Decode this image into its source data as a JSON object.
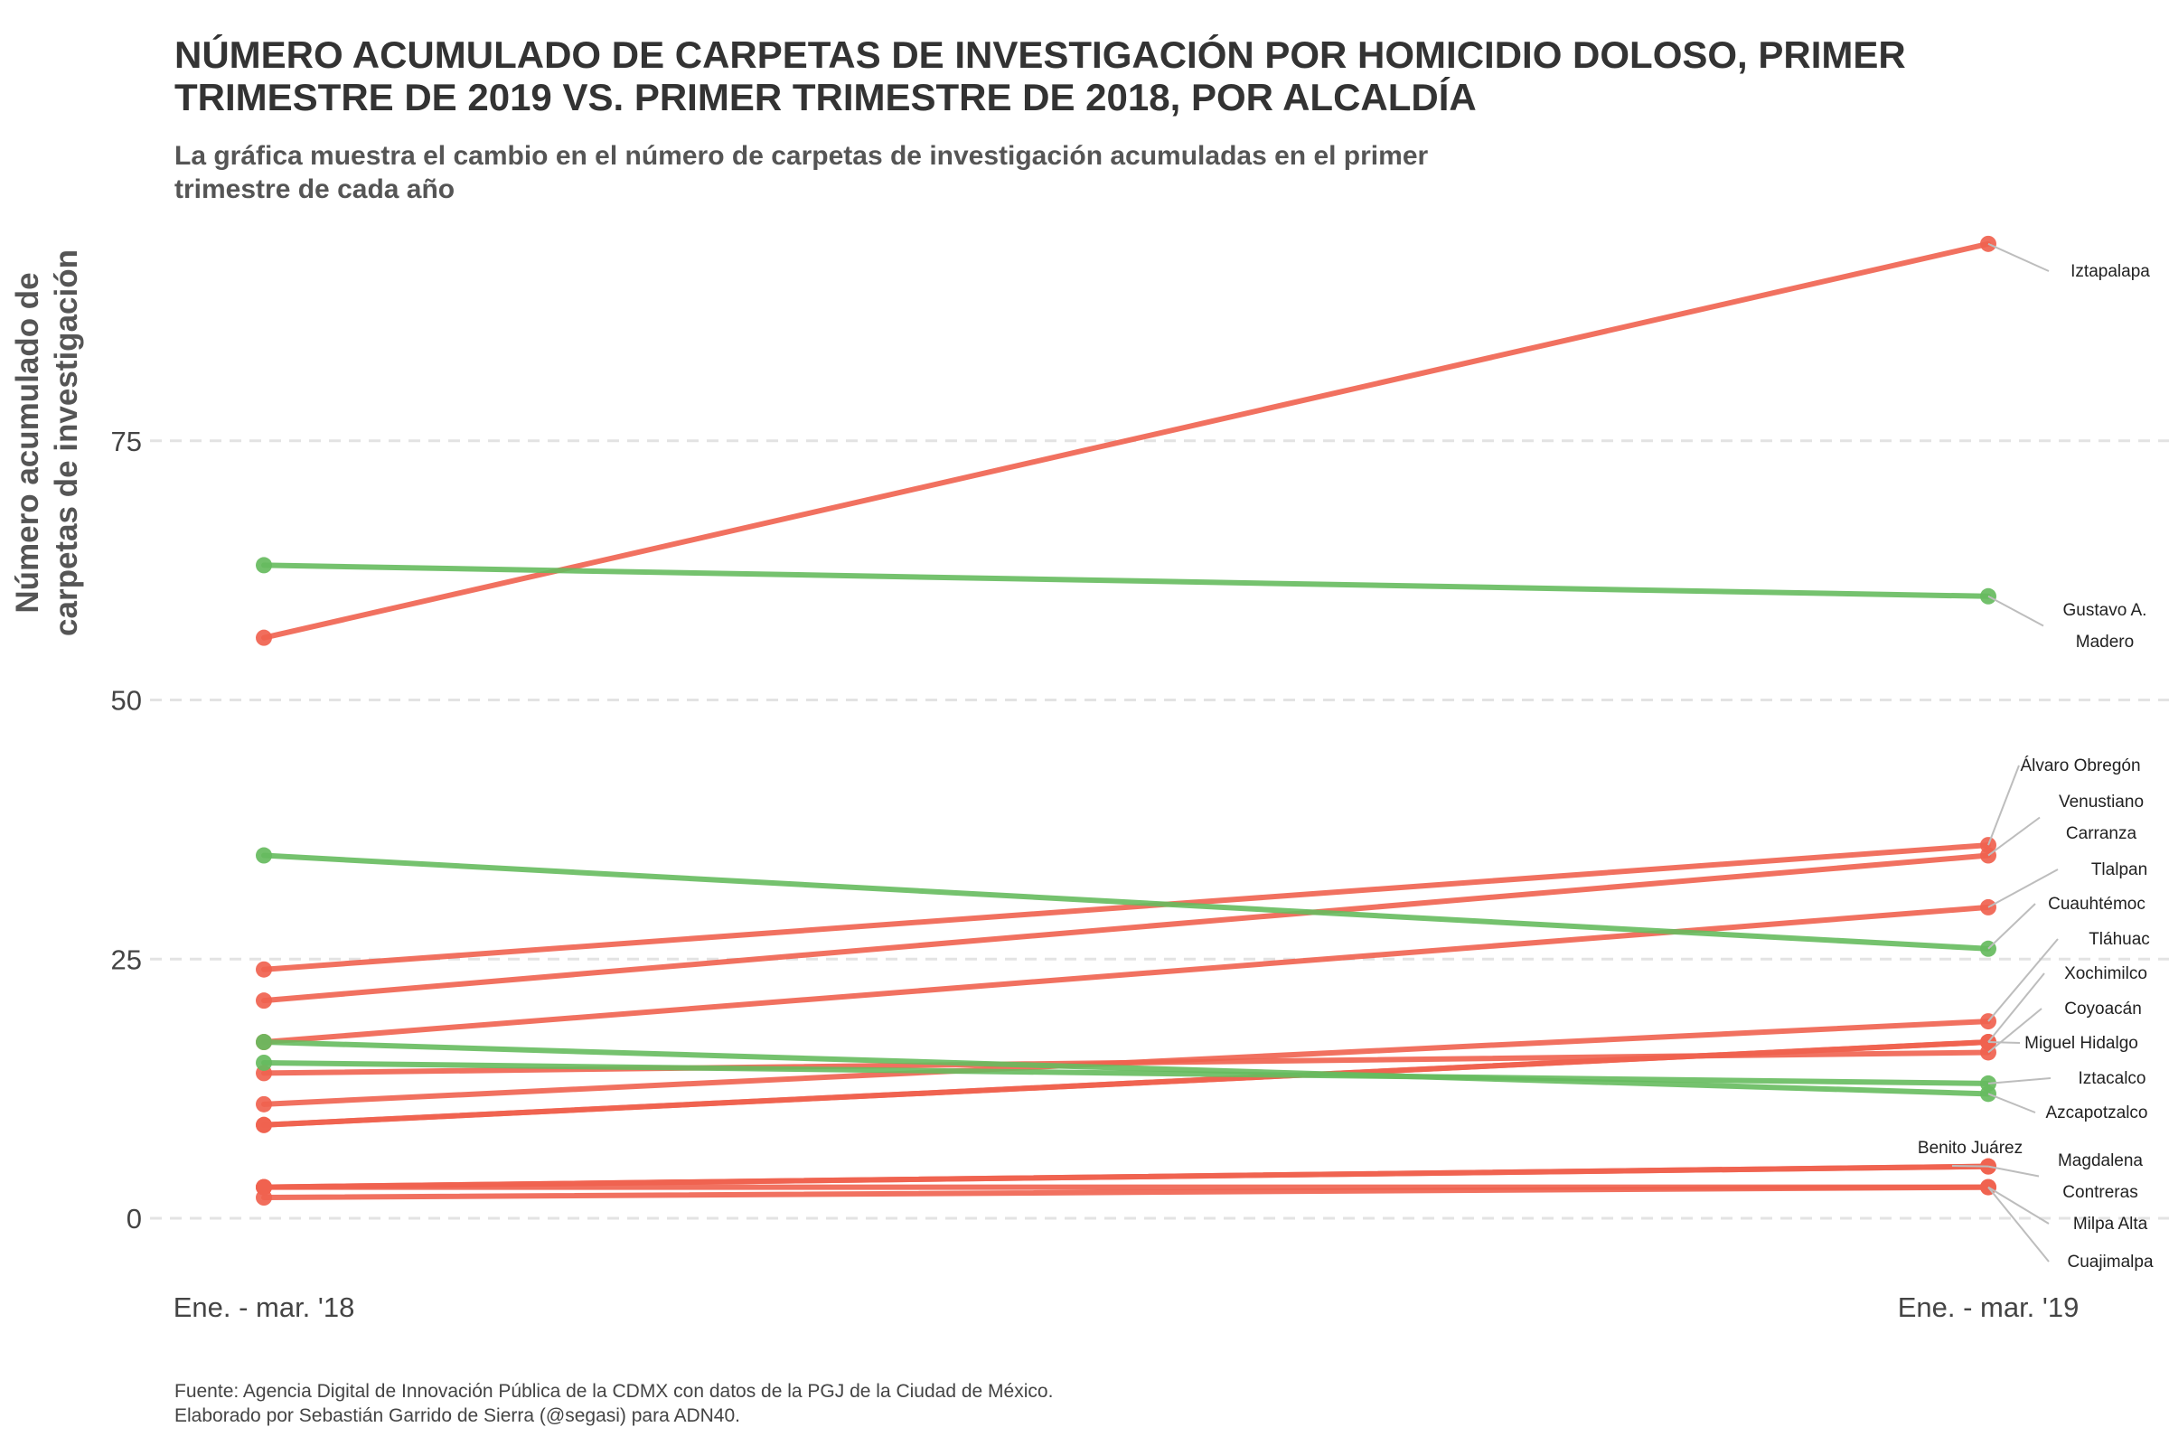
{
  "title": [
    "NÚMERO ACUMULADO DE CARPETAS DE INVESTIGACIÓN POR HOMICIDIO DOLOSO, PRIMER",
    "TRIMESTRE DE 2019 VS. PRIMER TRIMESTRE DE 2018, POR ALCALDÍA"
  ],
  "subtitle": [
    "La gráfica muestra el cambio en el número de carpetas de investigación acumuladas en el primer",
    "trimestre de cada año"
  ],
  "caption": [
    "Fuente: Agencia Digital de Innovación Pública de la CDMX con datos de la PGJ de la Ciudad de México.",
    "Elaborado por Sebastián Garrido de Sierra (@segasi) para ADN40."
  ],
  "colors": {
    "increase": "#f0624f",
    "decrease": "#66bb5e",
    "grid": "#e3e3e3",
    "leader": "#bdbdbd"
  },
  "chart_data": {
    "type": "line",
    "x": [
      "Ene. - mar. '18",
      "Ene. - mar. '19"
    ],
    "ylabel": [
      "Número acumulado de",
      "carpetas de investigación"
    ],
    "yticks": [
      0,
      25,
      50,
      75
    ],
    "ylim": [
      0,
      95
    ],
    "grid": true,
    "series": [
      {
        "name": "Iztapalapa",
        "values": [
          56,
          94
        ],
        "label_lines": [
          "Iztapalapa"
        ]
      },
      {
        "name": "Gustavo A. Madero",
        "values": [
          63,
          60
        ],
        "label_lines": [
          "Gustavo A.",
          "Madero"
        ]
      },
      {
        "name": "Álvaro Obregón",
        "values": [
          24,
          36
        ],
        "label_lines": [
          "Álvaro Obregón"
        ]
      },
      {
        "name": "Venustiano Carranza",
        "values": [
          21,
          35
        ],
        "label_lines": [
          "Venustiano",
          "Carranza"
        ]
      },
      {
        "name": "Tlalpan",
        "values": [
          17,
          30
        ],
        "label_lines": [
          "Tlalpan"
        ]
      },
      {
        "name": "Cuauhtémoc",
        "values": [
          35,
          26
        ],
        "label_lines": [
          "Cuauhtémoc"
        ]
      },
      {
        "name": "Tláhuac",
        "values": [
          11,
          19
        ],
        "label_lines": [
          "Tláhuac"
        ]
      },
      {
        "name": "Xochimilco",
        "values": [
          9,
          17
        ],
        "label_lines": [
          "Xochimilco"
        ]
      },
      {
        "name": "Coyoacán",
        "values": [
          14,
          16
        ],
        "label_lines": [
          "Coyoacán"
        ]
      },
      {
        "name": "Miguel Hidalgo",
        "values": [
          9,
          17
        ],
        "label_lines": [
          "Miguel Hidalgo"
        ]
      },
      {
        "name": "Iztacalco",
        "values": [
          15,
          13
        ],
        "label_lines": [
          "Iztacalco"
        ]
      },
      {
        "name": "Azcapotzalco",
        "values": [
          17,
          12
        ],
        "label_lines": [
          "Azcapotzalco"
        ]
      },
      {
        "name": "Benito Juárez",
        "values": [
          3,
          5
        ],
        "label_lines": [
          "Benito Juárez"
        ]
      },
      {
        "name": "Magdalena Contreras",
        "values": [
          3,
          5
        ],
        "label_lines": [
          "Magdalena",
          "Contreras"
        ]
      },
      {
        "name": "Milpa Alta",
        "values": [
          2,
          3
        ],
        "label_lines": [
          "Milpa Alta"
        ]
      },
      {
        "name": "Cuajimalpa",
        "values": [
          3,
          3
        ],
        "label_lines": [
          "Cuajimalpa"
        ]
      }
    ]
  }
}
